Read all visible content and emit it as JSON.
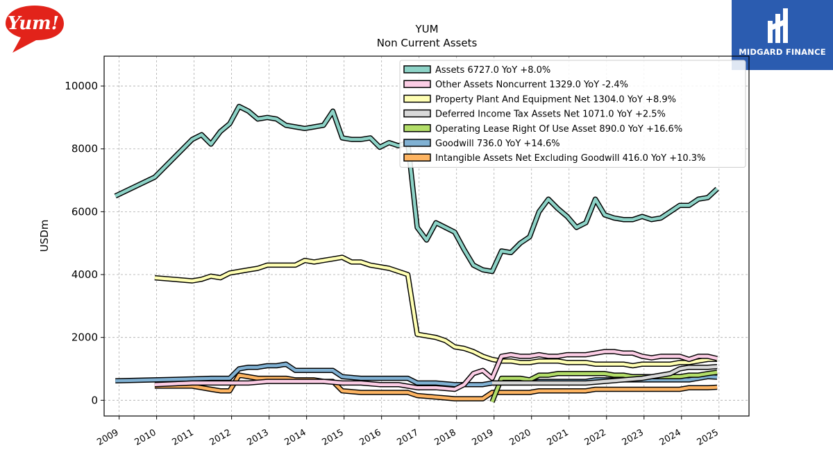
{
  "logo_left": {
    "text": "Yum!",
    "color": "#e2231a"
  },
  "logo_right": {
    "text": "MIDGARD FINANCE",
    "color": "#2b5cb0"
  },
  "chart_data": {
    "type": "line",
    "title": "YUM",
    "subtitle": "Non Current  Assets",
    "ylabel": "USDm",
    "xlabel": "",
    "xlim": [
      2008.6,
      2025.8
    ],
    "ylim": [
      -500,
      10950
    ],
    "yticks": [
      0,
      2000,
      4000,
      6000,
      8000,
      10000
    ],
    "xticks": [
      "2009",
      "2010",
      "2011",
      "2012",
      "2013",
      "2014",
      "2015",
      "2016",
      "2017",
      "2018",
      "2019",
      "2020",
      "2021",
      "2022",
      "2023",
      "2024",
      "2025"
    ],
    "grid": true,
    "legend_position": "top-right",
    "series": [
      {
        "name": "Assets",
        "legend": "Assets  6727.0 YoY +8.0%",
        "color": "#8dd3c7",
        "points": [
          [
            2008.9,
            6500
          ],
          [
            2009.95,
            7100
          ],
          [
            2010.95,
            8300
          ],
          [
            2011.2,
            8450
          ],
          [
            2011.45,
            8150
          ],
          [
            2011.7,
            8550
          ],
          [
            2011.95,
            8800
          ],
          [
            2012.2,
            9350
          ],
          [
            2012.45,
            9200
          ],
          [
            2012.7,
            8950
          ],
          [
            2012.95,
            9000
          ],
          [
            2013.2,
            8950
          ],
          [
            2013.45,
            8750
          ],
          [
            2013.7,
            8700
          ],
          [
            2013.95,
            8650
          ],
          [
            2014.2,
            8700
          ],
          [
            2014.45,
            8750
          ],
          [
            2014.7,
            9200
          ],
          [
            2014.95,
            8350
          ],
          [
            2015.2,
            8300
          ],
          [
            2015.45,
            8300
          ],
          [
            2015.7,
            8350
          ],
          [
            2015.95,
            8050
          ],
          [
            2016.2,
            8200
          ],
          [
            2016.45,
            8100
          ],
          [
            2016.7,
            8200
          ],
          [
            2016.95,
            5500
          ],
          [
            2017.2,
            5100
          ],
          [
            2017.45,
            5650
          ],
          [
            2017.7,
            5500
          ],
          [
            2017.95,
            5350
          ],
          [
            2018.2,
            4800
          ],
          [
            2018.45,
            4300
          ],
          [
            2018.7,
            4150
          ],
          [
            2018.95,
            4100
          ],
          [
            2019.2,
            4750
          ],
          [
            2019.45,
            4700
          ],
          [
            2019.7,
            5000
          ],
          [
            2019.95,
            5200
          ],
          [
            2020.2,
            6000
          ],
          [
            2020.45,
            6400
          ],
          [
            2020.7,
            6100
          ],
          [
            2020.95,
            5850
          ],
          [
            2021.2,
            5500
          ],
          [
            2021.45,
            5650
          ],
          [
            2021.7,
            6400
          ],
          [
            2021.95,
            5900
          ],
          [
            2022.2,
            5800
          ],
          [
            2022.45,
            5750
          ],
          [
            2022.7,
            5750
          ],
          [
            2022.95,
            5850
          ],
          [
            2023.2,
            5750
          ],
          [
            2023.45,
            5800
          ],
          [
            2023.7,
            6000
          ],
          [
            2023.95,
            6200
          ],
          [
            2024.2,
            6200
          ],
          [
            2024.45,
            6400
          ],
          [
            2024.7,
            6450
          ],
          [
            2024.95,
            6727
          ]
        ]
      },
      {
        "name": "Other Assets Noncurrent",
        "legend": "Other Assets Noncurrent  1329.0 YoY -2.4%",
        "color": "#fccde5",
        "points": [
          [
            2009.95,
            500
          ],
          [
            2010.95,
            550
          ],
          [
            2011.95,
            550
          ],
          [
            2012.45,
            550
          ],
          [
            2012.95,
            600
          ],
          [
            2013.45,
            600
          ],
          [
            2013.95,
            600
          ],
          [
            2014.45,
            600
          ],
          [
            2014.95,
            550
          ],
          [
            2015.45,
            550
          ],
          [
            2015.95,
            500
          ],
          [
            2016.45,
            500
          ],
          [
            2016.95,
            400
          ],
          [
            2017.45,
            400
          ],
          [
            2017.95,
            350
          ],
          [
            2018.2,
            500
          ],
          [
            2018.45,
            850
          ],
          [
            2018.7,
            950
          ],
          [
            2018.95,
            700
          ],
          [
            2019.2,
            1400
          ],
          [
            2019.45,
            1450
          ],
          [
            2019.7,
            1400
          ],
          [
            2019.95,
            1400
          ],
          [
            2020.2,
            1450
          ],
          [
            2020.45,
            1400
          ],
          [
            2020.7,
            1400
          ],
          [
            2020.95,
            1450
          ],
          [
            2021.2,
            1450
          ],
          [
            2021.45,
            1450
          ],
          [
            2021.7,
            1500
          ],
          [
            2021.95,
            1550
          ],
          [
            2022.2,
            1550
          ],
          [
            2022.45,
            1500
          ],
          [
            2022.7,
            1500
          ],
          [
            2022.95,
            1400
          ],
          [
            2023.2,
            1350
          ],
          [
            2023.45,
            1400
          ],
          [
            2023.7,
            1400
          ],
          [
            2023.95,
            1400
          ],
          [
            2024.2,
            1300
          ],
          [
            2024.45,
            1400
          ],
          [
            2024.7,
            1400
          ],
          [
            2024.95,
            1329
          ]
        ]
      },
      {
        "name": "Property Plant And Equipment Net",
        "legend": "Property Plant And Equipment Net  1304.0 YoY +8.9%",
        "color": "#ffffb3",
        "points": [
          [
            2009.95,
            3900
          ],
          [
            2010.95,
            3800
          ],
          [
            2011.2,
            3850
          ],
          [
            2011.45,
            3950
          ],
          [
            2011.7,
            3900
          ],
          [
            2011.95,
            4050
          ],
          [
            2012.2,
            4100
          ],
          [
            2012.45,
            4150
          ],
          [
            2012.7,
            4200
          ],
          [
            2012.95,
            4300
          ],
          [
            2013.2,
            4300
          ],
          [
            2013.45,
            4300
          ],
          [
            2013.7,
            4300
          ],
          [
            2013.95,
            4450
          ],
          [
            2014.2,
            4400
          ],
          [
            2014.45,
            4450
          ],
          [
            2014.7,
            4500
          ],
          [
            2014.95,
            4550
          ],
          [
            2015.2,
            4400
          ],
          [
            2015.45,
            4400
          ],
          [
            2015.7,
            4300
          ],
          [
            2015.95,
            4250
          ],
          [
            2016.2,
            4200
          ],
          [
            2016.45,
            4100
          ],
          [
            2016.7,
            4000
          ],
          [
            2016.95,
            2100
          ],
          [
            2017.2,
            2050
          ],
          [
            2017.45,
            2000
          ],
          [
            2017.7,
            1900
          ],
          [
            2017.95,
            1700
          ],
          [
            2018.2,
            1650
          ],
          [
            2018.45,
            1550
          ],
          [
            2018.7,
            1400
          ],
          [
            2018.95,
            1300
          ],
          [
            2019.2,
            1250
          ],
          [
            2019.45,
            1250
          ],
          [
            2019.7,
            1200
          ],
          [
            2019.95,
            1200
          ],
          [
            2020.2,
            1250
          ],
          [
            2020.45,
            1250
          ],
          [
            2020.7,
            1250
          ],
          [
            2020.95,
            1200
          ],
          [
            2021.2,
            1200
          ],
          [
            2021.45,
            1200
          ],
          [
            2021.7,
            1150
          ],
          [
            2021.95,
            1150
          ],
          [
            2022.2,
            1150
          ],
          [
            2022.45,
            1150
          ],
          [
            2022.7,
            1100
          ],
          [
            2022.95,
            1150
          ],
          [
            2023.2,
            1150
          ],
          [
            2023.45,
            1150
          ],
          [
            2023.7,
            1150
          ],
          [
            2023.95,
            1200
          ],
          [
            2024.2,
            1200
          ],
          [
            2024.45,
            1250
          ],
          [
            2024.7,
            1300
          ],
          [
            2024.95,
            1304
          ]
        ]
      },
      {
        "name": "Deferred Income Tax Assets Net",
        "legend": "Deferred Income Tax Assets Net  1071.0 YoY +2.5%",
        "color": "#d9d9d9",
        "points": [
          [
            2018.95,
            550
          ],
          [
            2019.45,
            550
          ],
          [
            2019.95,
            550
          ],
          [
            2020.45,
            550
          ],
          [
            2020.95,
            550
          ],
          [
            2021.45,
            550
          ],
          [
            2021.95,
            600
          ],
          [
            2022.45,
            650
          ],
          [
            2022.95,
            700
          ],
          [
            2023.2,
            750
          ],
          [
            2023.45,
            800
          ],
          [
            2023.7,
            850
          ],
          [
            2023.95,
            1000
          ],
          [
            2024.2,
            1050
          ],
          [
            2024.45,
            1050
          ],
          [
            2024.7,
            1050
          ],
          [
            2024.95,
            1071
          ]
        ]
      },
      {
        "name": "Operating Lease Right Of Use Asset",
        "legend": "Operating Lease Right Of Use Asset  890.0 YoY +16.6%",
        "color": "#b3de69",
        "points": [
          [
            2018.95,
            -50
          ],
          [
            2019.2,
            700
          ],
          [
            2019.45,
            700
          ],
          [
            2019.7,
            700
          ],
          [
            2019.95,
            650
          ],
          [
            2020.2,
            800
          ],
          [
            2020.45,
            800
          ],
          [
            2020.7,
            850
          ],
          [
            2020.95,
            850
          ],
          [
            2021.2,
            850
          ],
          [
            2021.45,
            850
          ],
          [
            2021.7,
            850
          ],
          [
            2021.95,
            850
          ],
          [
            2022.2,
            800
          ],
          [
            2022.45,
            800
          ],
          [
            2022.7,
            750
          ],
          [
            2022.95,
            750
          ],
          [
            2023.2,
            750
          ],
          [
            2023.45,
            750
          ],
          [
            2023.7,
            750
          ],
          [
            2023.95,
            750
          ],
          [
            2024.2,
            800
          ],
          [
            2024.45,
            800
          ],
          [
            2024.7,
            850
          ],
          [
            2024.95,
            890
          ]
        ]
      },
      {
        "name": "Goodwill",
        "legend": "Goodwill  736.0 YoY +14.6%",
        "color": "#80b1d3",
        "points": [
          [
            2008.9,
            620
          ],
          [
            2009.95,
            650
          ],
          [
            2010.95,
            680
          ],
          [
            2011.45,
            700
          ],
          [
            2011.95,
            700
          ],
          [
            2012.2,
            1000
          ],
          [
            2012.45,
            1050
          ],
          [
            2012.7,
            1050
          ],
          [
            2012.95,
            1100
          ],
          [
            2013.2,
            1100
          ],
          [
            2013.45,
            1150
          ],
          [
            2013.7,
            950
          ],
          [
            2013.95,
            950
          ],
          [
            2014.45,
            950
          ],
          [
            2014.7,
            950
          ],
          [
            2014.95,
            750
          ],
          [
            2015.45,
            700
          ],
          [
            2015.95,
            700
          ],
          [
            2016.45,
            700
          ],
          [
            2016.7,
            700
          ],
          [
            2016.95,
            550
          ],
          [
            2017.45,
            550
          ],
          [
            2017.95,
            500
          ],
          [
            2018.45,
            500
          ],
          [
            2018.7,
            500
          ],
          [
            2018.95,
            550
          ],
          [
            2019.45,
            550
          ],
          [
            2019.95,
            550
          ],
          [
            2020.2,
            600
          ],
          [
            2020.45,
            600
          ],
          [
            2020.95,
            600
          ],
          [
            2021.45,
            600
          ],
          [
            2021.7,
            650
          ],
          [
            2021.95,
            650
          ],
          [
            2022.45,
            650
          ],
          [
            2022.95,
            650
          ],
          [
            2023.45,
            650
          ],
          [
            2023.95,
            650
          ],
          [
            2024.2,
            650
          ],
          [
            2024.45,
            700
          ],
          [
            2024.7,
            750
          ],
          [
            2024.95,
            736
          ]
        ]
      },
      {
        "name": "Intangible Assets Net Excluding Goodwill",
        "legend": "Intangible Assets Net Excluding Goodwill  416.0 YoY +10.3%",
        "color": "#fdb462",
        "points": [
          [
            2009.95,
            450
          ],
          [
            2010.95,
            450
          ],
          [
            2011.2,
            400
          ],
          [
            2011.45,
            350
          ],
          [
            2011.7,
            300
          ],
          [
            2011.95,
            300
          ],
          [
            2012.2,
            800
          ],
          [
            2012.45,
            750
          ],
          [
            2012.7,
            700
          ],
          [
            2012.95,
            700
          ],
          [
            2013.2,
            700
          ],
          [
            2013.45,
            700
          ],
          [
            2013.7,
            650
          ],
          [
            2013.95,
            650
          ],
          [
            2014.2,
            650
          ],
          [
            2014.45,
            600
          ],
          [
            2014.7,
            600
          ],
          [
            2014.95,
            300
          ],
          [
            2015.45,
            250
          ],
          [
            2015.95,
            250
          ],
          [
            2016.45,
            250
          ],
          [
            2016.7,
            250
          ],
          [
            2016.95,
            150
          ],
          [
            2017.45,
            100
          ],
          [
            2017.95,
            50
          ],
          [
            2018.45,
            50
          ],
          [
            2018.7,
            50
          ],
          [
            2018.95,
            250
          ],
          [
            2019.45,
            250
          ],
          [
            2019.95,
            250
          ],
          [
            2020.2,
            300
          ],
          [
            2020.45,
            300
          ],
          [
            2020.95,
            300
          ],
          [
            2021.45,
            300
          ],
          [
            2021.7,
            350
          ],
          [
            2021.95,
            350
          ],
          [
            2022.45,
            350
          ],
          [
            2022.95,
            350
          ],
          [
            2023.45,
            350
          ],
          [
            2023.95,
            350
          ],
          [
            2024.2,
            400
          ],
          [
            2024.45,
            400
          ],
          [
            2024.7,
            400
          ],
          [
            2024.95,
            416
          ]
        ]
      }
    ]
  }
}
